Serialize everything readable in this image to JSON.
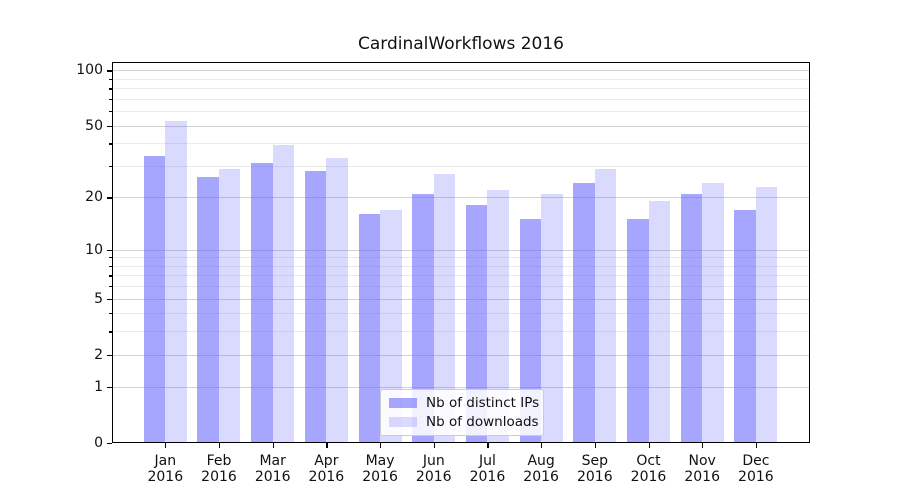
{
  "title": "CardinalWorkflows 2016",
  "chart_data": {
    "type": "bar",
    "title": "CardinalWorkflows 2016",
    "categories": [
      "Jan",
      "Feb",
      "Mar",
      "Apr",
      "May",
      "Jun",
      "Jul",
      "Aug",
      "Sep",
      "Oct",
      "Nov",
      "Dec"
    ],
    "x_year_label": "2016",
    "series": [
      {
        "name": "Nb of distinct IPs",
        "color": "#6666ff",
        "alpha": 0.58,
        "values": [
          34,
          26,
          31,
          28,
          16,
          21,
          18,
          15,
          24,
          15,
          21,
          17
        ]
      },
      {
        "name": "Nb of downloads",
        "color": "#6666ff",
        "alpha": 0.24,
        "values": [
          53,
          29,
          39,
          33,
          17,
          27,
          22,
          21,
          29,
          19,
          24,
          23
        ]
      }
    ],
    "yscale": "log1p",
    "ylim": [
      0,
      110
    ],
    "yticks_major": [
      0,
      1,
      2,
      5,
      10,
      20,
      50,
      100
    ],
    "yticks_minor": [
      3,
      4,
      6,
      7,
      8,
      9,
      30,
      40,
      60,
      70,
      80,
      90
    ],
    "grid": "major+minor",
    "legend_position": "lower center"
  },
  "colors": {
    "bar_dark_fill": "#a9a9f6",
    "bar_light_fill": "#dcdcfa",
    "grid_major": "#d2d2d2",
    "grid_minor": "#eaeaea",
    "axis": "#000000"
  }
}
